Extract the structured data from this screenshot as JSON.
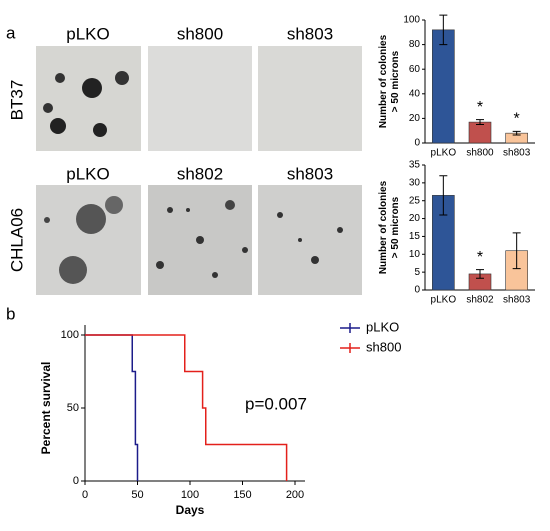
{
  "figure": {
    "panel_a": "a",
    "panel_b": "b",
    "rows": [
      {
        "name": "BT37",
        "columns": [
          "pLKO",
          "sh800",
          "sh803"
        ]
      },
      {
        "name": "CHLA06",
        "columns": [
          "pLKO",
          "sh802",
          "sh803"
        ]
      }
    ]
  },
  "chart_data": [
    {
      "type": "bar",
      "ylabel": [
        "Number of colonies",
        "> 50 microns"
      ],
      "categories": [
        "pLKO",
        "sh800",
        "sh803"
      ],
      "values": [
        92,
        17,
        8
      ],
      "errors": [
        12,
        2,
        1.5
      ],
      "colors": [
        "#2e5597",
        "#c0504d",
        "#f9c49a"
      ],
      "annotations": [
        null,
        "*",
        "*"
      ],
      "ylim": [
        0,
        100
      ],
      "yticks": [
        0,
        20,
        40,
        60,
        80,
        100
      ]
    },
    {
      "type": "bar",
      "ylabel": [
        "Number of colonies",
        "> 50 microns"
      ],
      "categories": [
        "pLKO",
        "sh802",
        "sh803"
      ],
      "values": [
        26.5,
        4.5,
        11
      ],
      "errors": [
        5.5,
        1.2,
        5
      ],
      "colors": [
        "#2e5597",
        "#c0504d",
        "#f9c49a"
      ],
      "annotations": [
        null,
        "*",
        null
      ],
      "ylim": [
        0,
        35
      ],
      "yticks": [
        0,
        5,
        10,
        15,
        20,
        25,
        30,
        35
      ]
    },
    {
      "type": "line",
      "xlabel": "Days",
      "ylabel": "Percent survival",
      "annotation": "p=0.007",
      "legend": "right",
      "series": [
        {
          "name": "pLKO",
          "color": "#1c1c8a",
          "x": [
            0,
            45,
            45,
            48,
            48,
            50,
            50
          ],
          "values": [
            100,
            100,
            75,
            75,
            25,
            25,
            0
          ]
        },
        {
          "name": "sh800",
          "color": "#e3201b",
          "x": [
            0,
            95,
            95,
            112,
            112,
            115,
            115,
            192,
            192
          ],
          "values": [
            100,
            100,
            75,
            75,
            50,
            50,
            25,
            25,
            0
          ]
        }
      ],
      "xlim": [
        0,
        200
      ],
      "xticks": [
        0,
        50,
        100,
        150,
        200
      ],
      "ylim": [
        0,
        100
      ],
      "yticks": [
        0,
        50,
        100
      ]
    }
  ]
}
